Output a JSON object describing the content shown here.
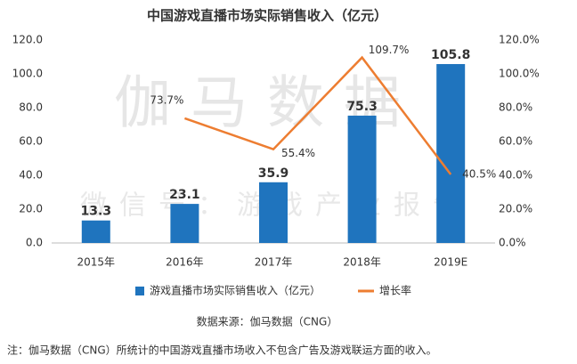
{
  "chart_data": {
    "type": "bar",
    "title": "中国游戏直播市场实际销售收入（亿元）",
    "categories": [
      "2015年",
      "2016年",
      "2017年",
      "2018年",
      "2019E"
    ],
    "series": [
      {
        "name": "游戏直播市场实际销售收入（亿元）",
        "type": "bar",
        "color": "#1f74be",
        "values": [
          13.3,
          23.1,
          35.9,
          75.3,
          105.8
        ]
      },
      {
        "name": "增长率",
        "type": "line",
        "axis": "y2",
        "color": "#ed7d31",
        "values": [
          null,
          73.7,
          55.4,
          109.7,
          40.5
        ],
        "value_labels": [
          null,
          "73.7%",
          "55.4%",
          "109.7%",
          "40.5%"
        ]
      }
    ],
    "ylim": [
      0,
      120
    ],
    "yticks": [
      {
        "value": 0,
        "label": "0.0"
      },
      {
        "value": 20,
        "label": "20.0"
      },
      {
        "value": 40,
        "label": "40.0"
      },
      {
        "value": 60,
        "label": "60.0"
      },
      {
        "value": 80,
        "label": "80.0"
      },
      {
        "value": 100,
        "label": "100.0"
      },
      {
        "value": 120,
        "label": "120.0"
      }
    ],
    "y2lim": [
      0,
      120
    ],
    "y2ticks": [
      {
        "value": 0,
        "label": "0.0%"
      },
      {
        "value": 20,
        "label": "20.0%"
      },
      {
        "value": 40,
        "label": "40.0%"
      },
      {
        "value": 60,
        "label": "60.0%"
      },
      {
        "value": 80,
        "label": "80.0%"
      },
      {
        "value": 100,
        "label": "100.0%"
      },
      {
        "value": 120,
        "label": "120.0%"
      }
    ],
    "legend": "bottom",
    "watermark": [
      "伽马数据",
      "微信号：游戏产业报告"
    ],
    "source": "数据来源：伽马数据（CNG）",
    "note": "注：伽马数据（CNG）所统计的中国游戏直播市场收入不包含广告及游戏联运方面的收入。"
  }
}
